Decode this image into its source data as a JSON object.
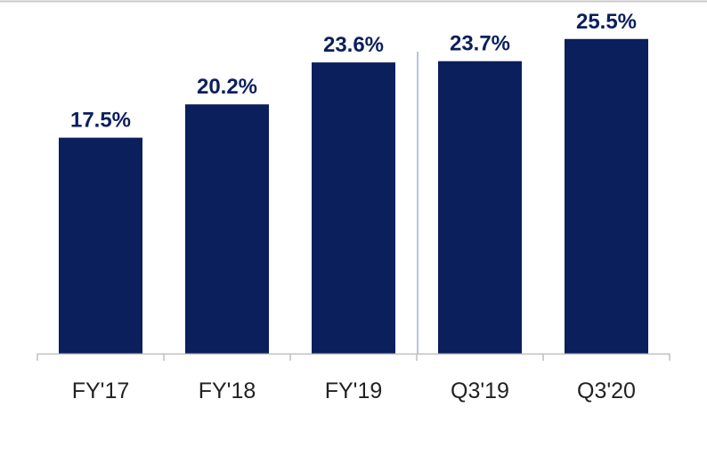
{
  "chart_data": {
    "type": "bar",
    "categories": [
      "FY'17",
      "FY'18",
      "FY'19",
      "Q3'19",
      "Q3'20"
    ],
    "values": [
      17.5,
      20.2,
      23.6,
      23.7,
      25.5
    ],
    "data_labels": [
      "17.5%",
      "20.2%",
      "23.6%",
      "23.7%",
      "25.5%"
    ],
    "title": "",
    "xlabel": "",
    "ylabel": "",
    "ylim": [
      0,
      27
    ],
    "grid": false,
    "legend": "none",
    "divider_between": [
      "FY'19",
      "Q3'19"
    ]
  },
  "colors": {
    "bar": "#0b1f5c",
    "data_label": "#0b1f5c",
    "tick_label": "#222222",
    "axis": "#bfbfbf",
    "top_border": "#c8c8c8",
    "divider": "#9db3d6"
  }
}
